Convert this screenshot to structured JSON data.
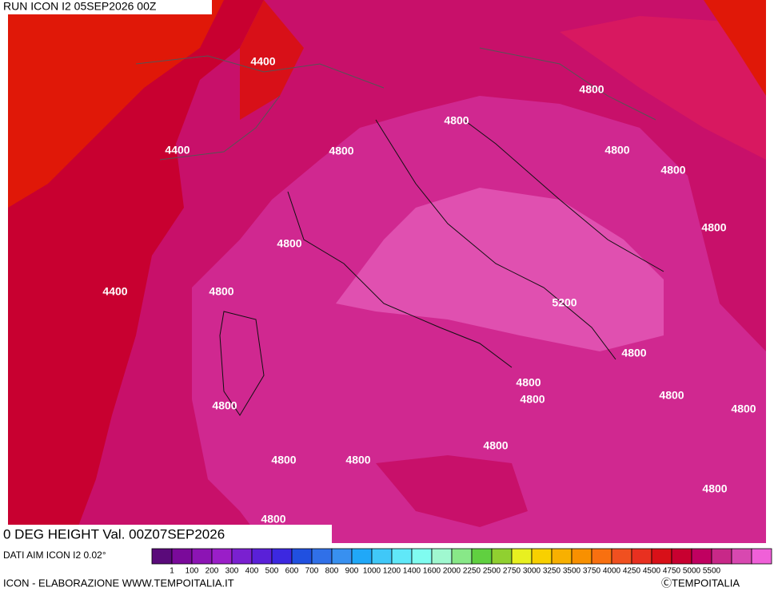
{
  "header": {
    "run": "RUN ICON I2 05SEP2026 00Z"
  },
  "map": {
    "contour_labels": [
      "4400",
      "4400",
      "4400",
      "4800",
      "4800",
      "4800",
      "4800",
      "4800",
      "4800",
      "4800",
      "4800",
      "4800",
      "4800",
      "4800",
      "4800",
      "4800",
      "4800",
      "4800",
      "4800",
      "4800",
      "4800",
      "4800",
      "5200"
    ]
  },
  "footer": {
    "title": "0 DEG HEIGHT Val. 00Z07SEP2026",
    "source": "DATI AIM ICON I2 0.02°",
    "credit": "ICON - ELABORAZIONE WWW.TEMPOITALIA.IT",
    "copyright": "ⒸTEMPOITALIA"
  },
  "legend": {
    "labels": [
      "1",
      "100",
      "200",
      "300",
      "400",
      "500",
      "600",
      "700",
      "800",
      "900",
      "1000",
      "1200",
      "1400",
      "1600",
      "2000",
      "2250",
      "2500",
      "2750",
      "3000",
      "3250",
      "3500",
      "3750",
      "4000",
      "4250",
      "4500",
      "4750",
      "5000",
      "5500"
    ],
    "colors": [
      "#5a0a7a",
      "#7a0a9a",
      "#8c14b4",
      "#9a1ec8",
      "#7a20d0",
      "#5a20d8",
      "#3c28e0",
      "#2050e0",
      "#3070e8",
      "#3890f0",
      "#20a8f8",
      "#40c8f8",
      "#60e8f8",
      "#80fcf0",
      "#a0f8d0",
      "#88e888",
      "#60d040",
      "#90d030",
      "#e8f020",
      "#f8d000",
      "#f8b000",
      "#f89000",
      "#f87010",
      "#f05020",
      "#e83020",
      "#d81018",
      "#c80030",
      "#c00060",
      "#c82888",
      "#d848b0",
      "#f060d8"
    ]
  }
}
